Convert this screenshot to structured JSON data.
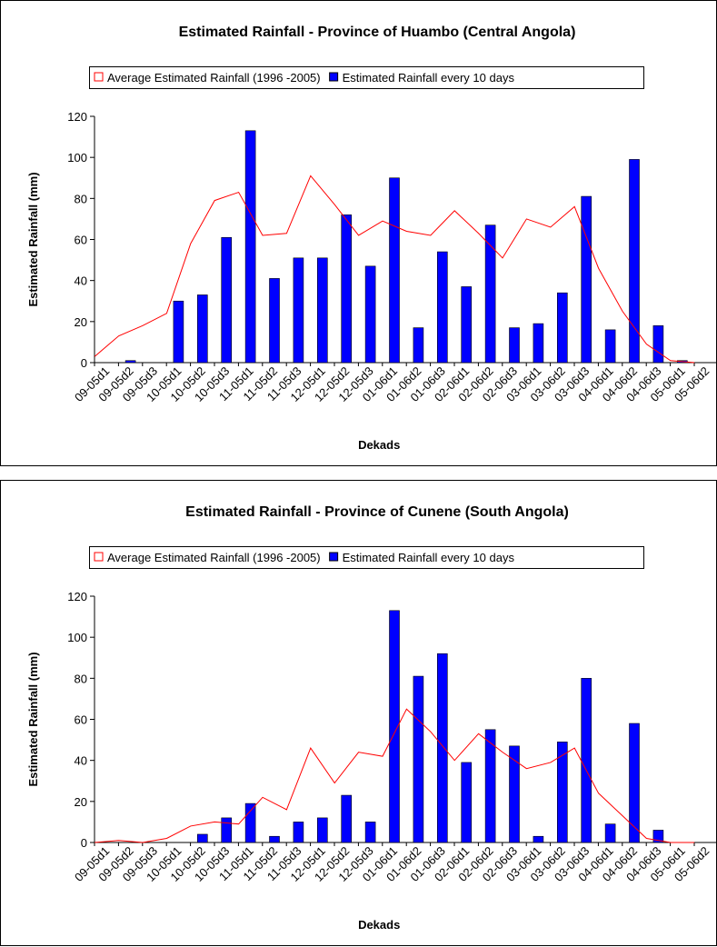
{
  "chart_data": [
    {
      "type": "combo",
      "title": "Estimated Rainfall - Province of Huambo (Central Angola)",
      "x_label": "Dekads",
      "y_label": "Estimated Rainfall (mm)",
      "categories": [
        "09-05d1",
        "09-05d2",
        "09-05d3",
        "10-05d1",
        "10-05d2",
        "10-05d3",
        "11-05d1",
        "11-05d2",
        "11-05d3",
        "12-05d1",
        "12-05d2",
        "12-05d3",
        "01-06d1",
        "01-06d2",
        "01-06d3",
        "02-06d1",
        "02-06d2",
        "02-06d3",
        "03-06d1",
        "03-06d2",
        "03-06d3",
        "04-06d1",
        "04-06d2",
        "04-06d3",
        "05-06d1",
        "05-06d2"
      ],
      "series": [
        {
          "name": "Average Estimated Rainfall  (1996 -2005)",
          "kind": "line",
          "color": "#ff0000",
          "values": [
            3,
            13,
            18,
            24,
            58,
            79,
            83,
            62,
            63,
            91,
            77,
            62,
            69,
            64,
            62,
            74,
            63,
            51,
            70,
            66,
            76,
            46,
            25,
            9,
            1,
            0
          ]
        },
        {
          "name": "Estimated Rainfall every 10 days",
          "kind": "bar",
          "color": "#0000ff",
          "values": [
            0,
            1,
            0,
            30,
            33,
            61,
            113,
            41,
            51,
            51,
            72,
            47,
            90,
            17,
            54,
            37,
            67,
            17,
            19,
            34,
            81,
            16,
            99,
            18,
            1,
            0
          ]
        }
      ],
      "ylim": [
        0,
        120
      ],
      "yticks": [
        0,
        20,
        40,
        60,
        80,
        100,
        120
      ],
      "grid": false
    },
    {
      "type": "combo",
      "title": "Estimated Rainfall - Province of Cunene (South Angola)",
      "x_label": "Dekads",
      "y_label": "Estimated Rainfall (mm)",
      "categories": [
        "09-05d1",
        "09-05d2",
        "09-05d3",
        "10-05d1",
        "10-05d2",
        "10-05d3",
        "11-05d1",
        "11-05d2",
        "11-05d3",
        "12-05d1",
        "12-05d2",
        "12-05d3",
        "01-06d1",
        "01-06d2",
        "01-06d3",
        "02-06d1",
        "02-06d2",
        "02-06d3",
        "03-06d1",
        "03-06d2",
        "03-06d3",
        "04-06d1",
        "04-06d2",
        "04-06d3",
        "05-06d1",
        "05-06d2"
      ],
      "series": [
        {
          "name": "Average Estimated Rainfall  (1996 -2005)",
          "kind": "line",
          "color": "#ff0000",
          "values": [
            0,
            1,
            0,
            2,
            8,
            10,
            9,
            22,
            16,
            46,
            29,
            44,
            42,
            65,
            54,
            40,
            53,
            44,
            36,
            39,
            46,
            24,
            13,
            2,
            0,
            0
          ]
        },
        {
          "name": "Estimated Rainfall every 10 days",
          "kind": "bar",
          "color": "#0000ff",
          "values": [
            0,
            0,
            0,
            0,
            4,
            12,
            19,
            3,
            10,
            12,
            23,
            10,
            113,
            81,
            92,
            39,
            55,
            47,
            3,
            49,
            80,
            9,
            58,
            6,
            0,
            0
          ]
        }
      ],
      "ylim": [
        0,
        120
      ],
      "yticks": [
        0,
        20,
        40,
        60,
        80,
        100,
        120
      ],
      "grid": false
    }
  ]
}
